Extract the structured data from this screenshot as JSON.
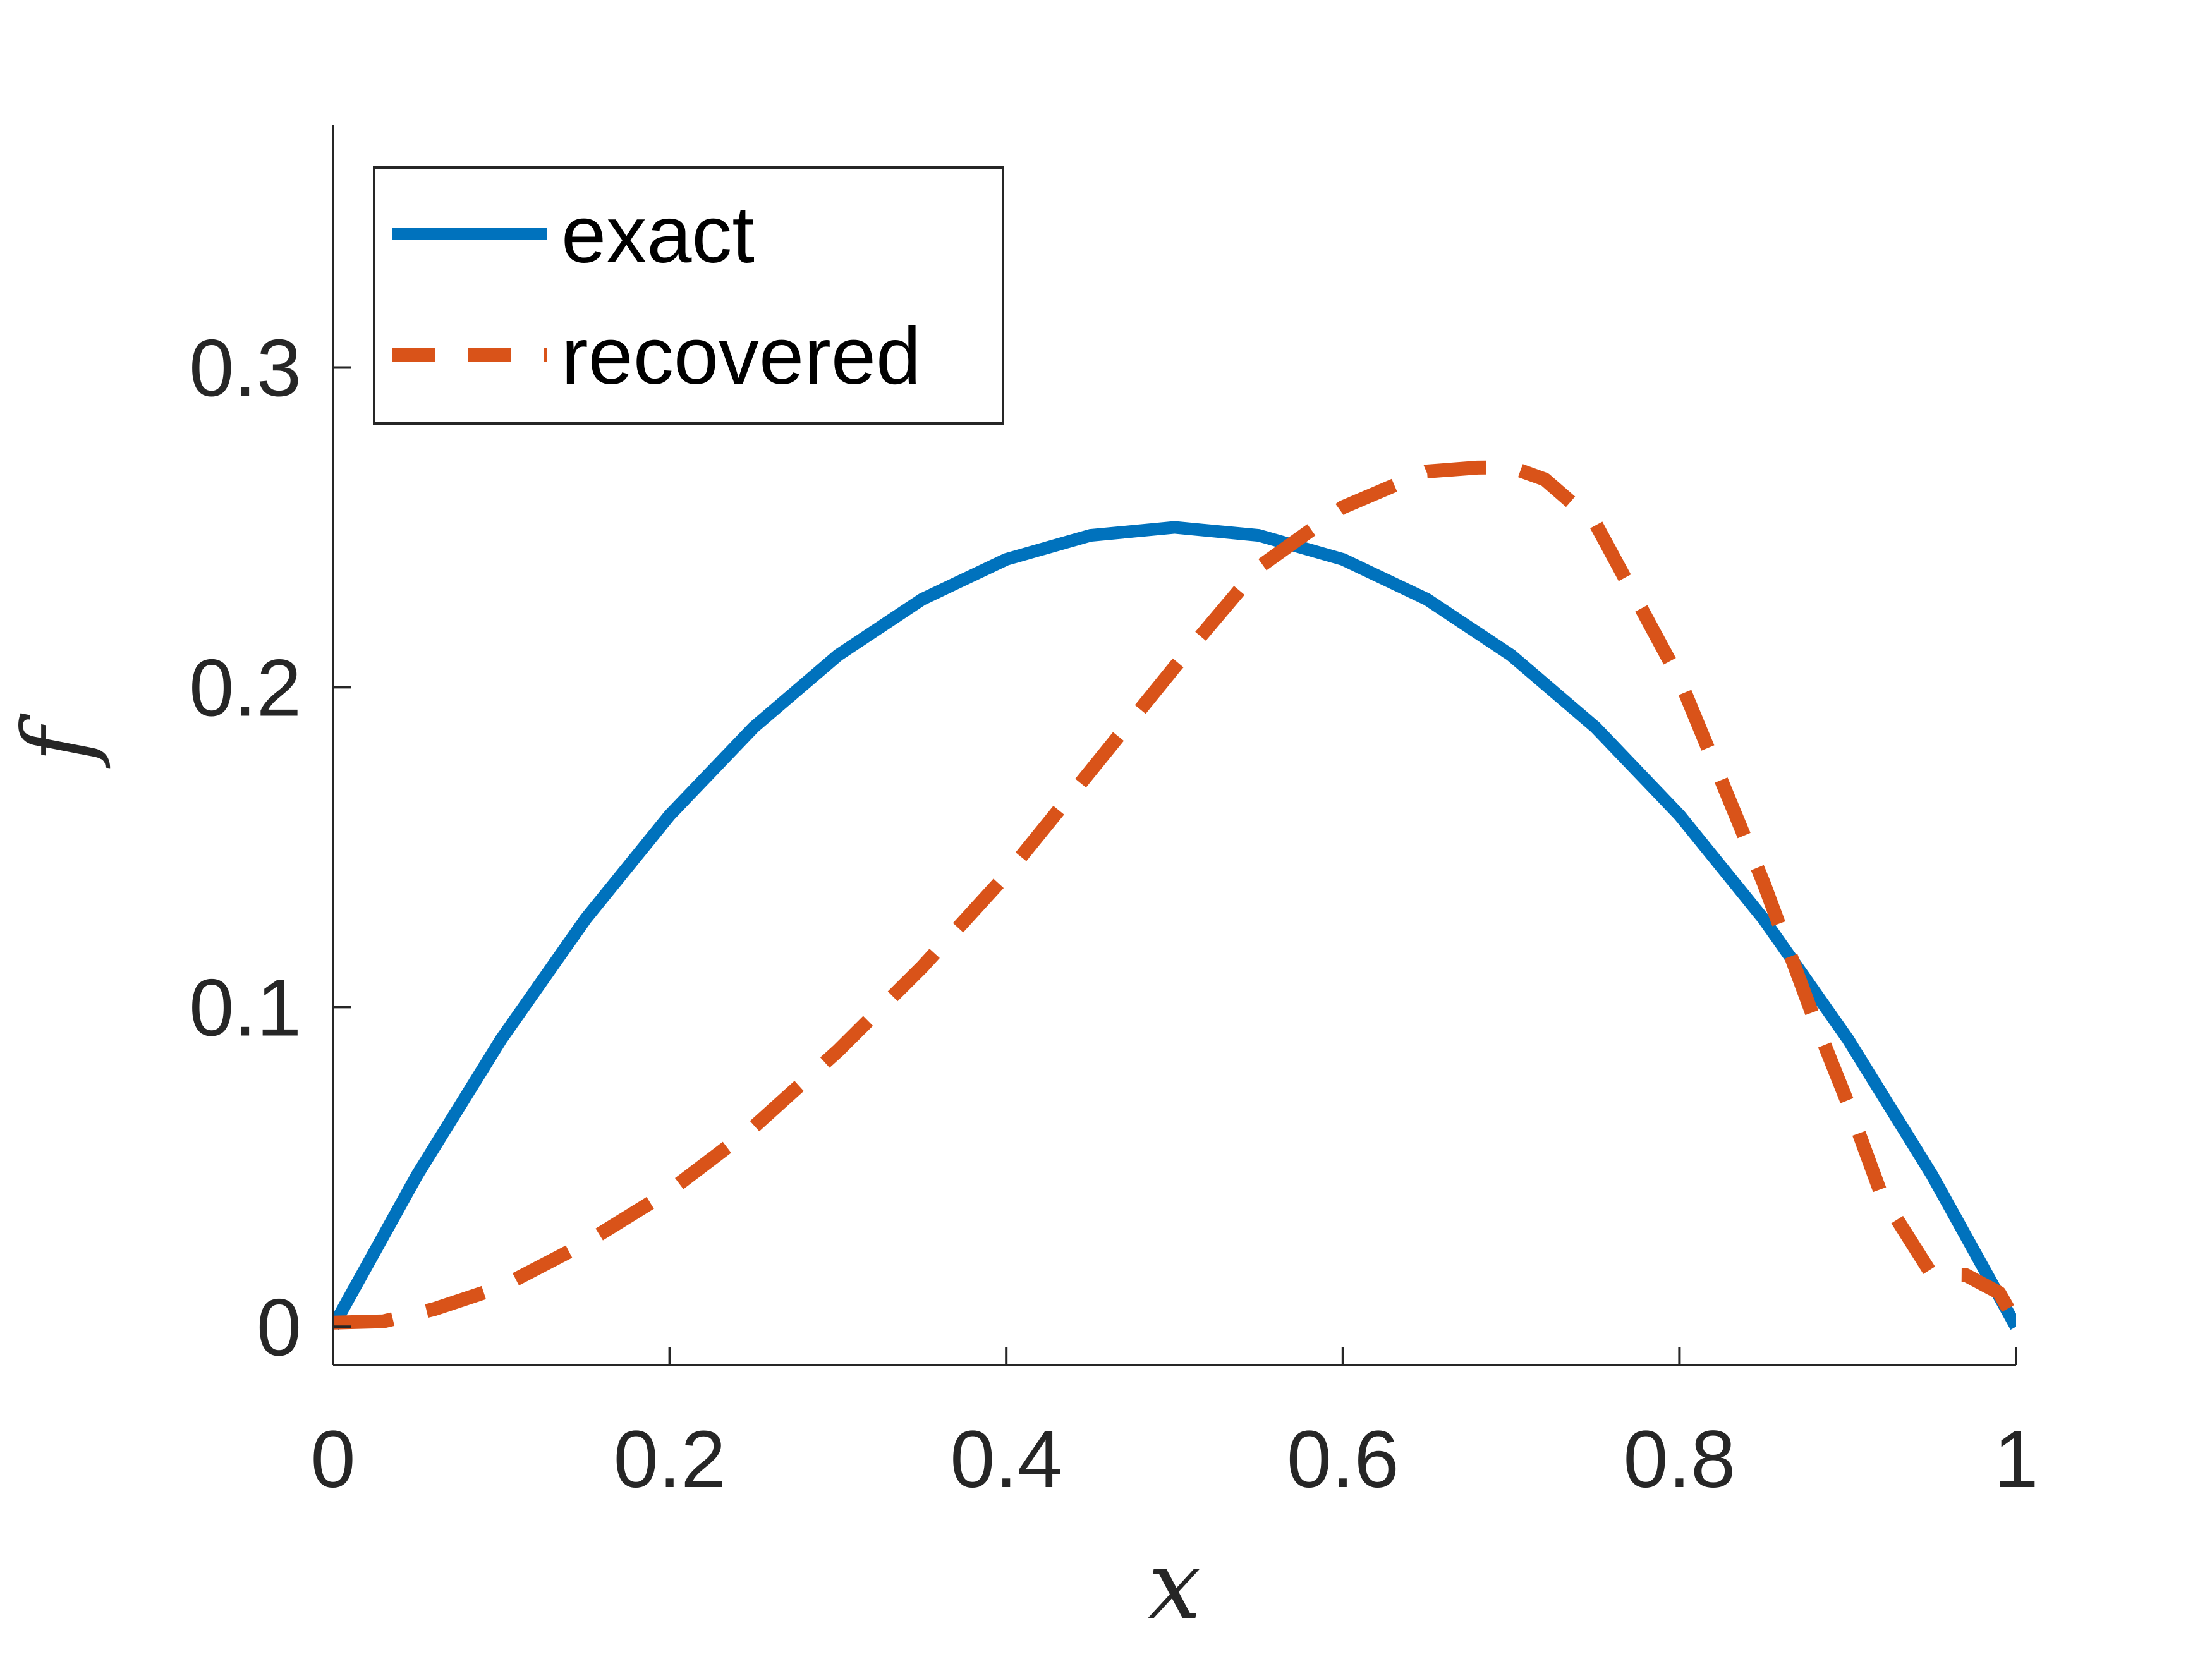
{
  "chart_data": {
    "type": "line",
    "title": "",
    "xlabel": "x",
    "ylabel": "f",
    "xlim": [
      0,
      1
    ],
    "ylim": [
      -0.012,
      0.376
    ],
    "x_ticks": [
      0,
      0.2,
      0.4,
      0.6,
      0.8,
      1
    ],
    "x_tick_labels": [
      "0",
      "0.2",
      "0.4",
      "0.6",
      "0.8",
      "1"
    ],
    "y_ticks": [
      0,
      0.1,
      0.2,
      0.3
    ],
    "y_tick_labels": [
      "0",
      "0.1",
      "0.2",
      "0.3"
    ],
    "grid": false,
    "box": "left-bottom",
    "legend_position": "top-left",
    "series": [
      {
        "name": "exact",
        "color": "#0072BD",
        "style": "solid",
        "x": [
          0,
          0.05,
          0.1,
          0.15,
          0.2,
          0.25,
          0.3,
          0.35,
          0.4,
          0.45,
          0.5,
          0.55,
          0.6,
          0.65,
          0.7,
          0.75,
          0.8,
          0.85,
          0.9,
          0.95,
          1
        ],
        "y": [
          0,
          0.0475,
          0.09,
          0.1275,
          0.16,
          0.1875,
          0.21,
          0.2275,
          0.24,
          0.2475,
          0.25,
          0.2475,
          0.24,
          0.2275,
          0.21,
          0.1875,
          0.16,
          0.1275,
          0.09,
          0.0475,
          0
        ]
      },
      {
        "name": "recovered",
        "color": "#D95319",
        "style": "dashed",
        "x": [
          0,
          0.03,
          0.06,
          0.1,
          0.15,
          0.2,
          0.25,
          0.3,
          0.35,
          0.4,
          0.45,
          0.5,
          0.55,
          0.6,
          0.65,
          0.68,
          0.7,
          0.72,
          0.75,
          0.8,
          0.85,
          0.88,
          0.9,
          0.92,
          0.95,
          0.97,
          0.99,
          1
        ],
        "y": [
          0.0013,
          0.0017,
          0.0055,
          0.0125,
          0.0262,
          0.0425,
          0.0625,
          0.0863,
          0.1125,
          0.1413,
          0.1738,
          0.2063,
          0.2375,
          0.2563,
          0.2675,
          0.2687,
          0.2688,
          0.265,
          0.2513,
          0.2025,
          0.1388,
          0.0963,
          0.07,
          0.0413,
          0.0163,
          0.0162,
          0.0106,
          0.0013
        ]
      }
    ]
  }
}
